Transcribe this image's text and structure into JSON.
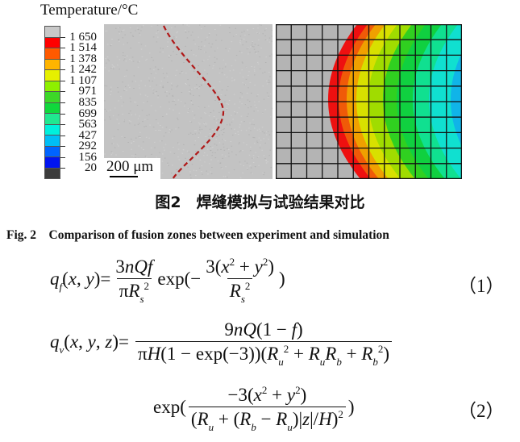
{
  "figure": {
    "legend": {
      "title": "Temperature/°C",
      "colors": [
        "#c8c8c8",
        "#ff0000",
        "#ff5a00",
        "#ffb400",
        "#e6f000",
        "#8ef000",
        "#3cd828",
        "#10d83c",
        "#20e890",
        "#00f0dc",
        "#00bef5",
        "#0064ff",
        "#0014f0",
        "#3c3c3c"
      ],
      "labels": [
        "1 650",
        "1 514",
        "1 378",
        "1 242",
        "1 107",
        "971",
        "835",
        "699",
        "563",
        "427",
        "292",
        "156",
        "20"
      ]
    },
    "micrograph": {
      "scale_bar": "200 μm",
      "fusion_line_color": "#b01818"
    },
    "simulation": {
      "band_colors": [
        "#b4b4b4",
        "#ee1010",
        "#f05a08",
        "#f0a000",
        "#d8e000",
        "#a0dc00",
        "#30d020",
        "#10d040",
        "#10e090",
        "#10e0d0",
        "#10b4e8"
      ],
      "grid_columns": 12,
      "grid_rows": 10
    }
  },
  "caption_cn": "图2　焊缝模拟与试验结果对比",
  "caption_en": "Fig. 2　Comparison of fusion zones between experiment and simulation",
  "equations": {
    "eq1": {
      "lhs": [
        [
          "i",
          "q"
        ],
        [
          "sub",
          "f"
        ],
        [
          "r",
          "("
        ],
        [
          "i",
          "x"
        ],
        [
          "r",
          ", "
        ],
        [
          "i",
          "y"
        ],
        [
          "r",
          ")="
        ]
      ],
      "f1_num": [
        [
          "r",
          "3"
        ],
        [
          "i",
          "nQf"
        ]
      ],
      "f1_den": [
        [
          "r",
          "π"
        ],
        [
          "i",
          "R"
        ],
        [
          "sub",
          "s"
        ],
        [
          "sup",
          "2"
        ]
      ],
      "mid": [
        [
          "r",
          "exp(−"
        ]
      ],
      "f2_num": [
        [
          "r",
          "3("
        ],
        [
          "i",
          "x"
        ],
        [
          "sup",
          "2"
        ],
        [
          "r",
          " + "
        ],
        [
          "i",
          "y"
        ],
        [
          "sup",
          "2"
        ],
        [
          "r",
          ")"
        ]
      ],
      "f2_den": [
        [
          "i",
          "R"
        ],
        [
          "sub",
          "s"
        ],
        [
          "sup",
          "2"
        ]
      ],
      "close": [
        [
          "r",
          ")"
        ]
      ],
      "number": "（1）"
    },
    "eq2": {
      "lhs": [
        [
          "i",
          "q"
        ],
        [
          "sub",
          "v"
        ],
        [
          "r",
          "("
        ],
        [
          "i",
          "x"
        ],
        [
          "r",
          ", "
        ],
        [
          "i",
          "y"
        ],
        [
          "r",
          ", "
        ],
        [
          "i",
          "z"
        ],
        [
          "r",
          ")="
        ]
      ],
      "num": [
        [
          "r",
          "9"
        ],
        [
          "i",
          "nQ"
        ],
        [
          "r",
          "(1 − "
        ],
        [
          "i",
          "f"
        ],
        [
          "r",
          ")"
        ]
      ],
      "den": [
        [
          "r",
          "π"
        ],
        [
          "i",
          "H"
        ],
        [
          "r",
          "(1 − exp(−3))("
        ],
        [
          "i",
          "R"
        ],
        [
          "sub",
          "u"
        ],
        [
          "sup",
          "2"
        ],
        [
          "r",
          " + "
        ],
        [
          "i",
          "R"
        ],
        [
          "sub",
          "u"
        ],
        [
          "i",
          "R"
        ],
        [
          "sub",
          "b"
        ],
        [
          "r",
          " + "
        ],
        [
          "i",
          "R"
        ],
        [
          "sub",
          "b"
        ],
        [
          "sup",
          "2"
        ],
        [
          "r",
          ")"
        ]
      ],
      "exp_open": [
        [
          "r",
          "exp("
        ]
      ],
      "num2": [
        [
          "r",
          "−3("
        ],
        [
          "i",
          "x"
        ],
        [
          "sup",
          "2"
        ],
        [
          "r",
          " + "
        ],
        [
          "i",
          "y"
        ],
        [
          "sup",
          "2"
        ],
        [
          "r",
          ")"
        ]
      ],
      "den2": [
        [
          "r",
          "("
        ],
        [
          "i",
          "R"
        ],
        [
          "sub",
          "u"
        ],
        [
          "r",
          " + ("
        ],
        [
          "i",
          "R"
        ],
        [
          "sub",
          "b"
        ],
        [
          "r",
          " − "
        ],
        [
          "i",
          "R"
        ],
        [
          "sub",
          "u"
        ],
        [
          "r",
          ")|"
        ],
        [
          "i",
          "z"
        ],
        [
          "r",
          "|/"
        ],
        [
          "i",
          "H"
        ],
        [
          "r",
          ")"
        ],
        [
          "sup",
          "2"
        ]
      ],
      "exp_close": [
        [
          "r",
          ")"
        ]
      ],
      "number": "（2）"
    }
  }
}
